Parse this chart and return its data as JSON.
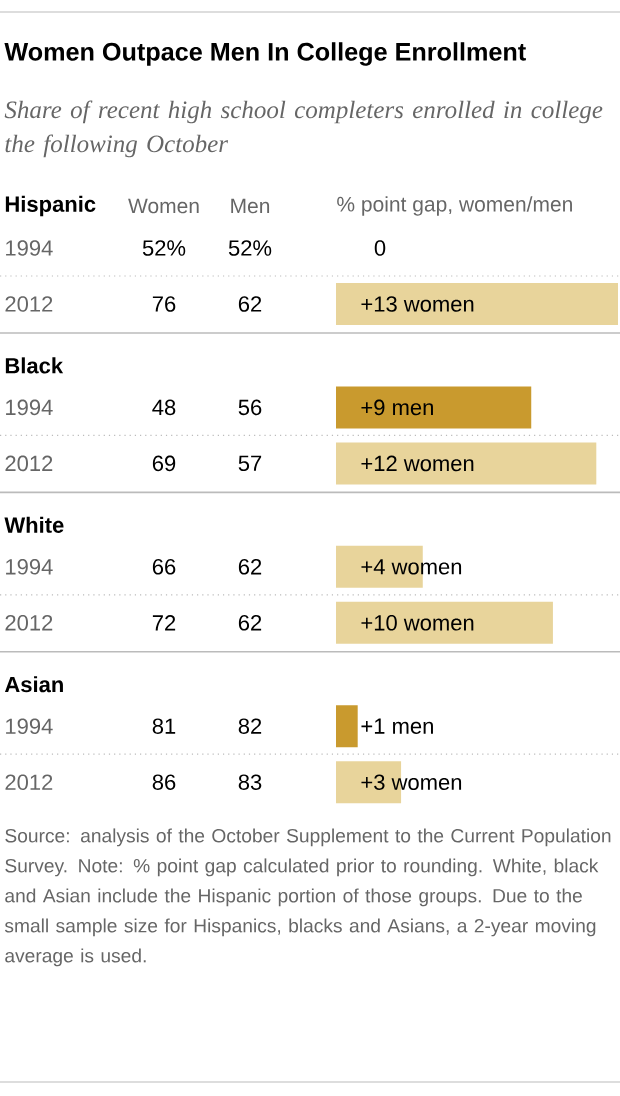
{
  "chart_data": [
    {
      "type": "bar",
      "orientation": "horizontal",
      "title": "Women Outpace Men In College Enrollment",
      "subtitle": "Share of recent high school completers enrolled in college the following October",
      "ylabel": "Hispanic",
      "categories": [
        "1994",
        "2012"
      ],
      "values": [
        0,
        13
      ],
      "colors": [
        "#e8d49b",
        "#e8d49b"
      ],
      "value_labels": [
        null,
        "+13 women"
      ],
      "annotations": [
        "Women",
        "Men",
        "% point gap, women/men",
        "52%",
        "52%",
        "76",
        "62",
        "0"
      ]
    },
    {
      "type": "bar",
      "orientation": "horizontal",
      "ylabel": "Black",
      "categories": [
        "1994",
        "2012"
      ],
      "values": [
        9,
        12
      ],
      "colors": [
        "#c99a2e",
        "#e8d49b"
      ],
      "value_labels": [
        "+9 men",
        "+12 women"
      ],
      "annotations": [
        "48",
        "56",
        "69",
        "57"
      ]
    },
    {
      "type": "bar",
      "orientation": "horizontal",
      "ylabel": "White",
      "categories": [
        "1994",
        "2012"
      ],
      "values": [
        4,
        10
      ],
      "colors": [
        "#e8d49b",
        "#e8d49b"
      ],
      "value_labels": [
        "+4 women",
        "+10 women"
      ],
      "annotations": [
        "66",
        "62",
        "72",
        "62"
      ]
    },
    {
      "type": "bar",
      "orientation": "horizontal",
      "ylabel": "Asian",
      "categories": [
        "1994",
        "2012"
      ],
      "values": [
        1,
        3
      ],
      "colors": [
        "#c99a2e",
        "#e8d49b"
      ],
      "value_labels": [
        "+1 men",
        "+3 women"
      ],
      "annotations": [
        "81",
        "82",
        "86",
        "83",
        "Source: analysis of the October Supplement to the Current Population Survey. Note: % point gap calculated prior to rounding. White, black and Asian include the Hispanic portion of those groups. Due to the small sample size for Hispanics, blacks and Asians, a 2-year moving average is used."
      ]
    }
  ]
}
